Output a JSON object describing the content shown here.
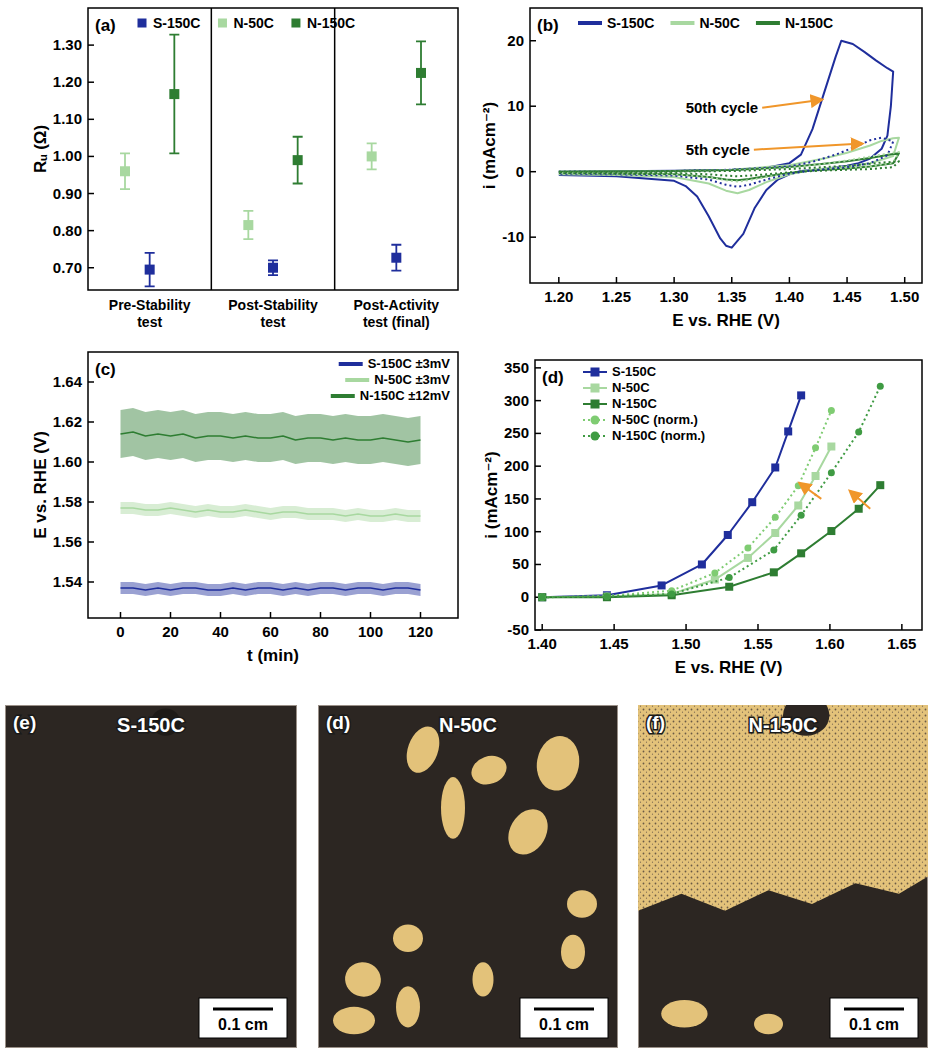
{
  "chart_data": [
    {
      "type": "scatter",
      "panel_label": "(a)",
      "y_label": "Rᵤ (Ω)",
      "categories": [
        "Pre-Stability test",
        "Post-Stability test",
        "Post-Activity test (final)"
      ],
      "series": [
        {
          "name": "S-150C",
          "color": "#1f2e9c",
          "marker": "square",
          "values": [
            0.695,
            0.7,
            0.727
          ],
          "errors": [
            0.045,
            0.02,
            0.035
          ]
        },
        {
          "name": "N-50C",
          "color": "#a8d8a0",
          "marker": "square",
          "values": [
            0.96,
            0.815,
            1.0
          ],
          "errors": [
            0.048,
            0.038,
            0.035
          ]
        },
        {
          "name": "N-150C",
          "color": "#2e7d32",
          "marker": "square",
          "values": [
            1.168,
            0.99,
            1.225
          ],
          "errors": [
            0.16,
            0.063,
            0.085
          ]
        }
      ],
      "ylim": [
        0.64,
        1.4
      ],
      "yticks": [
        {
          "value": 0.7,
          "label": "0.70"
        },
        {
          "value": 0.8,
          "label": "0.80"
        },
        {
          "value": 0.9,
          "label": "0.90"
        },
        {
          "value": 1.0,
          "label": "1.00"
        },
        {
          "value": 1.1,
          "label": "1.10"
        },
        {
          "value": 1.2,
          "label": "1.20"
        },
        {
          "value": 1.3,
          "label": "1.30"
        }
      ],
      "legend": "top"
    },
    {
      "type": "line",
      "panel_label": "(b)",
      "x_label": "E vs. RHE (V)",
      "y_label": "i (mAcm⁻²)",
      "annotations": [
        "50th cycle",
        "5th cycle"
      ],
      "series": [
        {
          "name": "S-150C",
          "color": "#1f2e9c",
          "line_style": "solid",
          "x": [
            1.2,
            1.25,
            1.3,
            1.35,
            1.38,
            1.4,
            1.41,
            1.42,
            1.43,
            1.44,
            1.445,
            1.455,
            1.465,
            1.475,
            1.485,
            1.49,
            1.488,
            1.485,
            1.48,
            1.47,
            1.46,
            1.45,
            1.43,
            1.41,
            1.4,
            1.39,
            1.38,
            1.37,
            1.36,
            1.35,
            1.345,
            1.34,
            1.33,
            1.32,
            1.31,
            1.3,
            1.25,
            1.2
          ],
          "values": [
            0.0,
            0.05,
            0.15,
            0.3,
            0.6,
            1.3,
            2.6,
            6.5,
            12.0,
            17.5,
            20.0,
            19.5,
            18.3,
            17.0,
            15.8,
            15.3,
            10.0,
            5.5,
            3.5,
            2.0,
            1.3,
            0.9,
            0.4,
            0.1,
            -0.4,
            -1.2,
            -2.8,
            -5.5,
            -9.5,
            -11.6,
            -11.3,
            -10.2,
            -6.8,
            -3.8,
            -2.2,
            -1.4,
            -0.7,
            -0.5
          ]
        },
        {
          "name": "N-50C",
          "color": "#a8d8a0",
          "line_style": "solid",
          "x": [
            1.2,
            1.3,
            1.35,
            1.4,
            1.43,
            1.45,
            1.47,
            1.48,
            1.49,
            1.495,
            1.49,
            1.47,
            1.45,
            1.42,
            1.4,
            1.38,
            1.365,
            1.355,
            1.345,
            1.33,
            1.3,
            1.25,
            1.2
          ],
          "values": [
            0.0,
            0.1,
            0.3,
            1.0,
            2.0,
            2.9,
            4.0,
            4.7,
            5.1,
            5.2,
            2.4,
            1.3,
            0.8,
            0.3,
            -0.4,
            -1.6,
            -2.8,
            -3.3,
            -2.9,
            -1.8,
            -0.8,
            -0.5,
            -0.4
          ]
        },
        {
          "name": "N-150C",
          "color": "#2e7d32",
          "line_style": "solid",
          "x": [
            1.2,
            1.3,
            1.35,
            1.4,
            1.43,
            1.45,
            1.47,
            1.48,
            1.49,
            1.495,
            1.49,
            1.47,
            1.45,
            1.42,
            1.4,
            1.38,
            1.365,
            1.355,
            1.345,
            1.33,
            1.3,
            1.25,
            1.2
          ],
          "values": [
            0.0,
            0.1,
            0.25,
            0.7,
            1.2,
            1.6,
            2.1,
            2.4,
            2.7,
            2.8,
            1.3,
            0.8,
            0.5,
            0.2,
            -0.2,
            -0.7,
            -1.1,
            -1.3,
            -1.2,
            -0.8,
            -0.4,
            -0.3,
            -0.2
          ]
        },
        {
          "name": "S-150C",
          "color": "#1f2e9c",
          "line_style": "dotted",
          "x": [
            1.2,
            1.3,
            1.35,
            1.4,
            1.42,
            1.44,
            1.46,
            1.47,
            1.48,
            1.49,
            1.485,
            1.47,
            1.45,
            1.42,
            1.4,
            1.38,
            1.365,
            1.355,
            1.345,
            1.33,
            1.3,
            1.25,
            1.2
          ],
          "values": [
            0.0,
            0.1,
            0.3,
            0.8,
            1.5,
            2.6,
            4.0,
            4.8,
            5.2,
            4.6,
            2.5,
            1.3,
            0.7,
            0.2,
            -0.3,
            -1.2,
            -2.0,
            -2.3,
            -2.0,
            -1.2,
            -0.6,
            -0.4,
            -0.3
          ]
        },
        {
          "name": "N-50C",
          "color": "#a8d8a0",
          "line_style": "dotted",
          "x": [
            1.2,
            1.3,
            1.35,
            1.4,
            1.43,
            1.45,
            1.47,
            1.48,
            1.49,
            1.495,
            1.49,
            1.47,
            1.45,
            1.42,
            1.4,
            1.38,
            1.365,
            1.355,
            1.345,
            1.33,
            1.3,
            1.25,
            1.2
          ],
          "values": [
            0.0,
            0.05,
            0.2,
            0.6,
            1.2,
            1.7,
            2.3,
            2.6,
            2.9,
            3.0,
            1.4,
            0.8,
            0.5,
            0.2,
            -0.2,
            -0.8,
            -1.3,
            -1.5,
            -1.3,
            -0.8,
            -0.4,
            -0.3,
            -0.2
          ]
        },
        {
          "name": "N-150C",
          "color": "#2e7d32",
          "line_style": "dotted",
          "x": [
            1.2,
            1.3,
            1.35,
            1.4,
            1.43,
            1.45,
            1.47,
            1.48,
            1.49,
            1.495,
            1.49,
            1.47,
            1.45,
            1.42,
            1.4,
            1.38,
            1.365,
            1.355,
            1.345,
            1.33,
            1.3,
            1.25,
            1.2
          ],
          "values": [
            0.0,
            0.05,
            0.1,
            0.4,
            0.7,
            0.9,
            1.2,
            1.4,
            1.5,
            1.6,
            0.7,
            0.4,
            0.3,
            0.1,
            -0.1,
            -0.4,
            -0.6,
            -0.7,
            -0.6,
            -0.4,
            -0.2,
            -0.15,
            -0.1
          ]
        }
      ],
      "xlim": [
        1.175,
        1.515
      ],
      "xticks": [
        {
          "value": 1.2,
          "label": "1.20"
        },
        1.25,
        {
          "value": 1.3,
          "label": "1.30"
        },
        1.35,
        {
          "value": 1.4,
          "label": "1.40"
        },
        1.45,
        {
          "value": 1.5,
          "label": "1.50"
        }
      ],
      "ylim": [
        -17,
        25
      ],
      "yticks": [
        -10,
        0,
        10,
        20
      ],
      "legend": "top"
    },
    {
      "type": "line",
      "panel_label": "(c)",
      "x_label": "t (min)",
      "y_label": "E vs. RHE (V)",
      "series": [
        {
          "name": "S-150C ±3mV",
          "color": "#1f2e9c",
          "line_style": "solid",
          "spread": 0.003,
          "x": [
            0,
            5,
            10,
            15,
            20,
            25,
            30,
            35,
            40,
            45,
            50,
            55,
            60,
            65,
            70,
            75,
            80,
            85,
            90,
            95,
            100,
            105,
            110,
            115,
            120
          ],
          "values": [
            1.537,
            1.537,
            1.536,
            1.537,
            1.536,
            1.537,
            1.537,
            1.536,
            1.536,
            1.537,
            1.536,
            1.537,
            1.537,
            1.536,
            1.537,
            1.536,
            1.537,
            1.537,
            1.536,
            1.537,
            1.537,
            1.536,
            1.537,
            1.537,
            1.536
          ]
        },
        {
          "name": "N-50C ±3mV",
          "color": "#a8d8a0",
          "line_style": "solid",
          "spread": 0.003,
          "x": [
            0,
            5,
            10,
            15,
            20,
            25,
            30,
            35,
            40,
            45,
            50,
            55,
            60,
            65,
            70,
            75,
            80,
            85,
            90,
            95,
            100,
            105,
            110,
            115,
            120
          ],
          "values": [
            1.577,
            1.577,
            1.576,
            1.576,
            1.577,
            1.576,
            1.575,
            1.576,
            1.575,
            1.575,
            1.576,
            1.575,
            1.574,
            1.575,
            1.575,
            1.574,
            1.574,
            1.574,
            1.573,
            1.574,
            1.573,
            1.573,
            1.574,
            1.573,
            1.573
          ]
        },
        {
          "name": "N-150C ±12mV",
          "color": "#2e7d32",
          "line_style": "solid",
          "spread": 0.012,
          "x": [
            0,
            5,
            10,
            15,
            20,
            25,
            30,
            35,
            40,
            45,
            50,
            55,
            60,
            65,
            70,
            75,
            80,
            85,
            90,
            95,
            100,
            105,
            110,
            115,
            120
          ],
          "values": [
            1.614,
            1.615,
            1.613,
            1.614,
            1.613,
            1.614,
            1.612,
            1.613,
            1.613,
            1.612,
            1.613,
            1.612,
            1.612,
            1.613,
            1.611,
            1.612,
            1.612,
            1.611,
            1.612,
            1.611,
            1.611,
            1.612,
            1.611,
            1.61,
            1.611
          ]
        }
      ],
      "xlim": [
        -13,
        135
      ],
      "xticks": [
        0,
        20,
        40,
        60,
        80,
        100,
        120
      ],
      "ylim": [
        1.522,
        1.655
      ],
      "yticks": [
        1.54,
        1.56,
        1.58,
        {
          "value": 1.6,
          "label": "1.60"
        },
        1.62,
        1.64
      ],
      "legend": "top right"
    },
    {
      "type": "line",
      "panel_label": "(d)",
      "x_label": "E vs. RHE (V)",
      "y_label": "i (mAcm⁻²)",
      "series": [
        {
          "name": "S-150C",
          "color": "#1f2e9c",
          "line_style": "solid",
          "marker": "square",
          "x": [
            1.4,
            1.445,
            1.483,
            1.511,
            1.529,
            1.546,
            1.562,
            1.571,
            1.58
          ],
          "values": [
            0,
            3,
            18,
            50,
            95,
            145,
            198,
            253,
            308
          ]
        },
        {
          "name": "N-50C",
          "color": "#a8d8a0",
          "line_style": "solid",
          "marker": "square",
          "x": [
            1.4,
            1.445,
            1.49,
            1.52,
            1.543,
            1.562,
            1.578,
            1.59,
            1.601
          ],
          "values": [
            0,
            1,
            5,
            27,
            60,
            98,
            140,
            185,
            230
          ]
        },
        {
          "name": "N-150C",
          "color": "#2e7d32",
          "line_style": "solid",
          "marker": "square",
          "x": [
            1.4,
            1.445,
            1.49,
            1.53,
            1.561,
            1.58,
            1.601,
            1.62,
            1.635
          ],
          "values": [
            0,
            0,
            3,
            16,
            38,
            67,
            101,
            135,
            171
          ]
        },
        {
          "name": "N-50C (norm.)",
          "color": "#7fcc72",
          "line_style": "dotted",
          "marker": "circle",
          "x": [
            1.4,
            1.445,
            1.49,
            1.52,
            1.543,
            1.562,
            1.578,
            1.59,
            1.601
          ],
          "values": [
            0,
            2,
            10,
            37,
            75,
            122,
            170,
            228,
            285
          ]
        },
        {
          "name": "N-150C (norm.)",
          "color": "#3f9b43",
          "line_style": "dotted",
          "marker": "circle",
          "x": [
            1.4,
            1.445,
            1.49,
            1.53,
            1.561,
            1.58,
            1.601,
            1.62,
            1.635
          ],
          "values": [
            0,
            1,
            5,
            30,
            72,
            125,
            190,
            252,
            322
          ]
        }
      ],
      "xlim": [
        1.395,
        1.664
      ],
      "xticks": [
        {
          "value": 1.4,
          "label": "1.40"
        },
        1.45,
        {
          "value": 1.5,
          "label": "1.50"
        },
        1.55,
        {
          "value": 1.6,
          "label": "1.60"
        },
        1.65
      ],
      "ylim": [
        -50,
        362
      ],
      "yticks": [
        -50,
        0,
        50,
        100,
        150,
        200,
        250,
        300,
        350
      ],
      "legend": "top left"
    }
  ],
  "photos": [
    {
      "panel_label": "(e)",
      "title": "S-150C",
      "scale_bar": "0.1 cm"
    },
    {
      "panel_label": "(d)",
      "title": "N-50C",
      "scale_bar": "0.1 cm"
    },
    {
      "panel_label": "(f)",
      "title": "N-150C",
      "scale_bar": "0.1 cm"
    }
  ]
}
